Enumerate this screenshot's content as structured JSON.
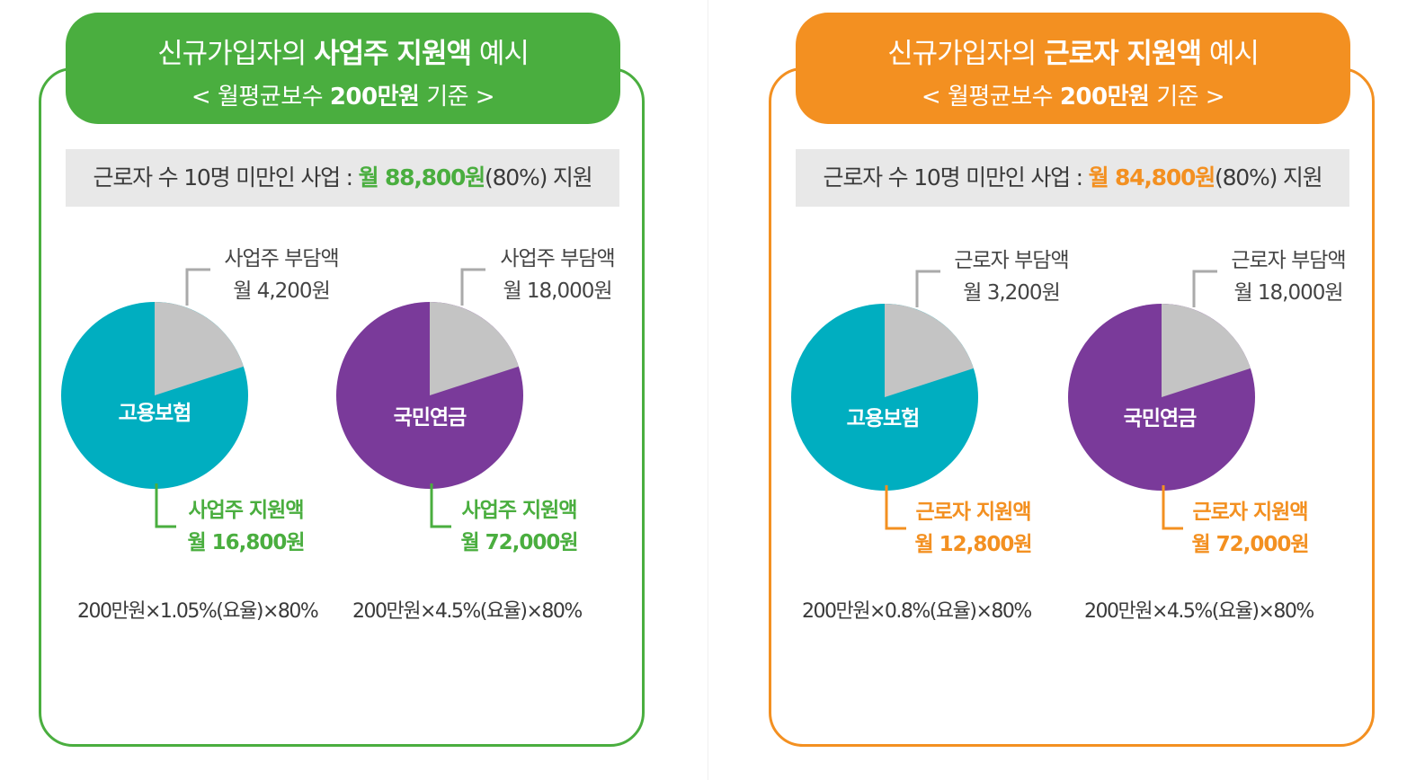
{
  "colors": {
    "green": "#4aae3f",
    "orange": "#f39021",
    "teal": "#00aec0",
    "purple": "#7a3a9a",
    "gray_slice": "#c4c4c4",
    "leader_gray": "#aaaaaa"
  },
  "panels": [
    {
      "id": "employer",
      "accent": "#4aae3f",
      "title_prefix": "신규가입자의 ",
      "title_bold": "사업주 지원액",
      "title_suffix": " 예시",
      "subtitle_prefix": "< 월평균보수 ",
      "subtitle_bold": "200만원",
      "subtitle_suffix": " 기준 >",
      "banner_prefix": "근로자 수 10명 미만인 사업 : ",
      "banner_amount": "월 88,800원",
      "banner_suffix": "(80%) 지원",
      "charts": [
        {
          "label": "고용보험",
          "burden_title": "사업주 부담액",
          "burden_amount": "월 4,200원",
          "support_title": "사업주 지원액",
          "support_amount": "월 16,800원",
          "formula": "200만원×1.05%(요율)×80%",
          "slice_color": "#00aec0"
        },
        {
          "label": "국민연금",
          "burden_title": "사업주 부담액",
          "burden_amount": "월 18,000원",
          "support_title": "사업주 지원액",
          "support_amount": "월 72,000원",
          "formula": "200만원×4.5%(요율)×80%",
          "slice_color": "#7a3a9a"
        }
      ]
    },
    {
      "id": "worker",
      "accent": "#f39021",
      "title_prefix": "신규가입자의 ",
      "title_bold": "근로자 지원액",
      "title_suffix": " 예시",
      "subtitle_prefix": "< 월평균보수 ",
      "subtitle_bold": "200만원",
      "subtitle_suffix": " 기준 >",
      "banner_prefix": "근로자 수 10명 미만인 사업 : ",
      "banner_amount": "월 84,800원",
      "banner_suffix": "(80%) 지원",
      "charts": [
        {
          "label": "고용보험",
          "burden_title": "근로자 부담액",
          "burden_amount": "월 3,200원",
          "support_title": "근로자 지원액",
          "support_amount": "월 12,800원",
          "formula": "200만원×0.8%(요율)×80%",
          "slice_color": "#00aec0"
        },
        {
          "label": "국민연금",
          "burden_title": "근로자 부담액",
          "burden_amount": "월 18,000원",
          "support_title": "근로자 지원액",
          "support_amount": "월 72,000원",
          "formula": "200만원×4.5%(요율)×80%",
          "slice_color": "#7a3a9a"
        }
      ]
    }
  ],
  "chart_data": [
    {
      "type": "pie",
      "title": "고용보험 (사업주)",
      "labels": [
        "사업주 부담액",
        "사업주 지원액"
      ],
      "values": [
        4200,
        16800
      ],
      "colors": [
        "#c4c4c4",
        "#00aec0"
      ]
    },
    {
      "type": "pie",
      "title": "국민연금 (사업주)",
      "labels": [
        "사업주 부담액",
        "사업주 지원액"
      ],
      "values": [
        18000,
        72000
      ],
      "colors": [
        "#c4c4c4",
        "#7a3a9a"
      ]
    },
    {
      "type": "pie",
      "title": "고용보험 (근로자)",
      "labels": [
        "근로자 부담액",
        "근로자 지원액"
      ],
      "values": [
        3200,
        12800
      ],
      "colors": [
        "#c4c4c4",
        "#00aec0"
      ]
    },
    {
      "type": "pie",
      "title": "국민연금 (근로자)",
      "labels": [
        "근로자 부담액",
        "근로자 지원액"
      ],
      "values": [
        18000,
        72000
      ],
      "colors": [
        "#c4c4c4",
        "#7a3a9a"
      ]
    }
  ]
}
